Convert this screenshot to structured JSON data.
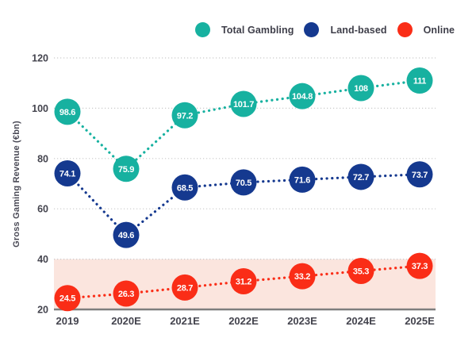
{
  "chart_data": {
    "type": "line",
    "title": "",
    "xlabel": "",
    "ylabel": "Gross Gaming Revenue (€bn)",
    "categories": [
      "2019",
      "2020E",
      "2021E",
      "2022E",
      "2023E",
      "2024E",
      "2025E"
    ],
    "series": [
      {
        "name": "Total Gambling",
        "color": "#17b1a0",
        "values": [
          98.6,
          75.9,
          97.2,
          101.7,
          104.8,
          108,
          111
        ]
      },
      {
        "name": "Land-based",
        "color": "#15398f",
        "values": [
          74.1,
          49.6,
          68.5,
          70.5,
          71.6,
          72.7,
          73.7
        ]
      },
      {
        "name": "Online",
        "color": "#fa2d17",
        "values": [
          24.5,
          26.3,
          28.7,
          31.2,
          33.2,
          35.3,
          37.3
        ]
      }
    ],
    "ylim": [
      20,
      120
    ],
    "yticks": [
      20,
      40,
      60,
      80,
      100,
      120
    ],
    "grid": true,
    "grid_style": "dotted",
    "line_style": "dotted",
    "marker": "labeled-bubble",
    "legend_position": "top",
    "highlight_band": {
      "from": 20,
      "to": 40,
      "color": "#fbe5de"
    },
    "colors": {
      "gridline": "#cacaca",
      "axis_line": "#7e7e7e",
      "tick_text": "#44444e",
      "axis_title_text": "#4a4a56",
      "bubble_text": "#ffffff"
    }
  }
}
